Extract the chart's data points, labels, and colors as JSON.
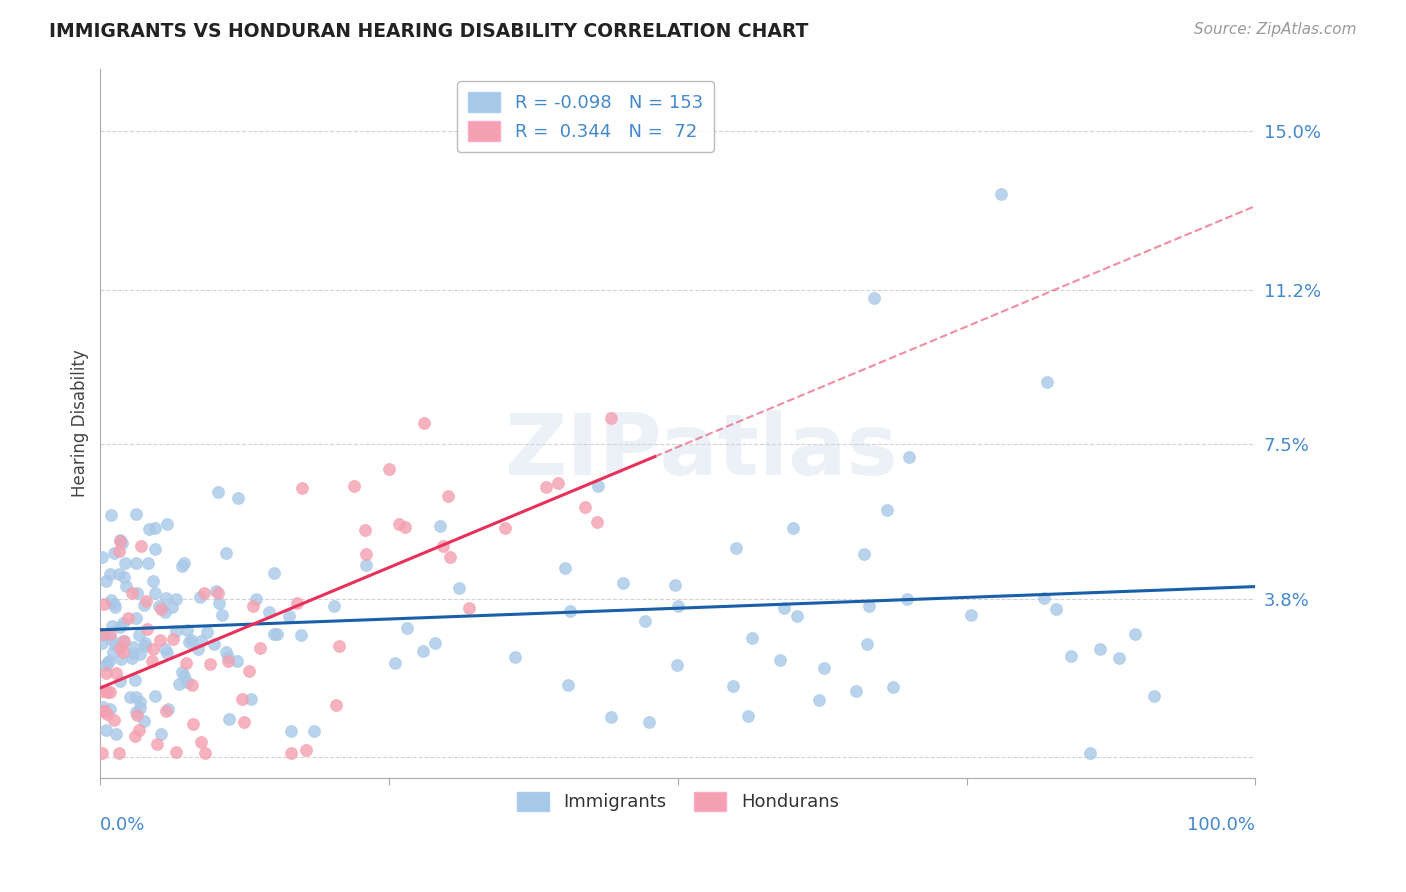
{
  "title": "IMMIGRANTS VS HONDURAN HEARING DISABILITY CORRELATION CHART",
  "source": "Source: ZipAtlas.com",
  "ylabel": "Hearing Disability",
  "xlabel": "",
  "legend_label1": "Immigrants",
  "legend_label2": "Hondurans",
  "r1": "-0.098",
  "n1": "153",
  "r2": "0.344",
  "n2": "72",
  "xlim": [
    0.0,
    1.0
  ],
  "ylim": [
    -0.005,
    0.165
  ],
  "yticks": [
    0.0,
    0.038,
    0.075,
    0.112,
    0.15
  ],
  "ytick_labels": [
    "",
    "3.8%",
    "7.5%",
    "11.2%",
    "15.0%"
  ],
  "color_immigrants": "#a8c8e8",
  "color_hondurans": "#f4a0b0",
  "line_color_immigrants": "#1a5fa8",
  "line_color_hondurans": "#e8305a",
  "background_color": "#ffffff",
  "grid_color": "#c8c8c8",
  "watermark": "ZIPatlas",
  "title_color": "#222222",
  "axis_label_color": "#444444",
  "tick_label_color": "#4488cc",
  "source_color": "#999999"
}
